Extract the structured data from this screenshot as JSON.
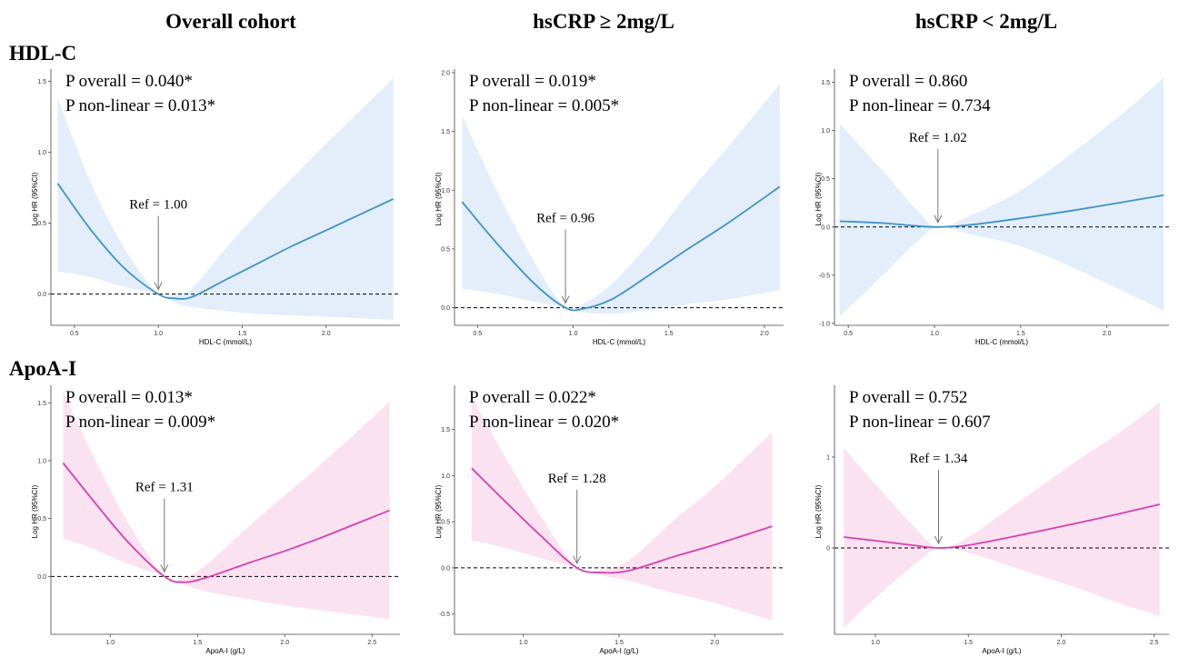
{
  "column_titles": [
    "Overall cohort",
    "hsCRP ≥ 2mg/L",
    "hsCRP < 2mg/L"
  ],
  "row_titles": [
    "HDL-C",
    "ApoA-I"
  ],
  "colors": {
    "hdl_line": "#3e93c7",
    "hdl_band": "#e3eefa",
    "apoa_line": "#d63fb0",
    "apoa_band": "#fbe2f1"
  },
  "chart_data": [
    {
      "type": "line",
      "panel": "HDL-C / Overall cohort",
      "xlabel": "HDL-C (mmol/L)",
      "ylabel": "Log HR (95%CI)",
      "xlim": [
        0.36,
        2.44
      ],
      "ylim": [
        -0.22,
        1.56
      ],
      "xticks": [
        0.5,
        1.0,
        1.5,
        2.0
      ],
      "xtick_labels": [
        "0.5",
        "1.0",
        "1.5",
        "2.0"
      ],
      "yticks": [
        0,
        0.5,
        1.0,
        1.5
      ],
      "ytick_labels": [
        "0.0",
        "0.5",
        "1.0",
        "1.5"
      ],
      "p_overall": "P overall = 0.040*",
      "p_nonlinear": "P non-linear = 0.013*",
      "ref_label": "Ref = 1.00",
      "ref_x": 1.0,
      "x": [
        0.4,
        0.6,
        0.8,
        1.0,
        1.1,
        1.2,
        1.4,
        1.6,
        1.8,
        2.0,
        2.2,
        2.4
      ],
      "y": [
        0.78,
        0.45,
        0.18,
        0.0,
        -0.03,
        -0.02,
        0.1,
        0.22,
        0.34,
        0.45,
        0.56,
        0.67
      ],
      "lower": [
        0.16,
        0.12,
        0.05,
        0.0,
        -0.06,
        -0.09,
        -0.12,
        -0.14,
        -0.15,
        -0.16,
        -0.17,
        -0.18
      ],
      "upper": [
        1.38,
        0.78,
        0.32,
        0.0,
        0.01,
        0.04,
        0.32,
        0.58,
        0.82,
        1.06,
        1.29,
        1.52
      ]
    },
    {
      "type": "line",
      "panel": "HDL-C / hsCRP ≥ 2mg/L",
      "xlabel": "HDL-C (mmol/L)",
      "ylabel": "Log HR (95%CI)",
      "xlim": [
        0.38,
        2.1
      ],
      "ylim": [
        -0.15,
        2.0
      ],
      "xticks": [
        0.5,
        1.0,
        1.5,
        2.0
      ],
      "xtick_labels": [
        "0.5",
        "1.0",
        "1.5",
        "2.0"
      ],
      "yticks": [
        0,
        0.5,
        1.0,
        1.5,
        2.0
      ],
      "ytick_labels": [
        "0.0",
        "0.5",
        "1.0",
        "1.5",
        "2.0"
      ],
      "p_overall": "P overall = 0.019*",
      "p_nonlinear": "P non-linear = 0.005*",
      "ref_label": "Ref = 0.96",
      "ref_x": 0.96,
      "x": [
        0.42,
        0.6,
        0.8,
        0.96,
        1.05,
        1.2,
        1.4,
        1.6,
        1.8,
        2.08
      ],
      "y": [
        0.9,
        0.55,
        0.2,
        0.0,
        -0.01,
        0.07,
        0.28,
        0.5,
        0.71,
        1.03
      ],
      "lower": [
        0.16,
        0.12,
        0.05,
        0.0,
        -0.04,
        -0.05,
        -0.02,
        0.03,
        0.07,
        0.15
      ],
      "upper": [
        1.63,
        1.0,
        0.38,
        0.0,
        0.03,
        0.2,
        0.55,
        0.97,
        1.35,
        1.9
      ]
    },
    {
      "type": "line",
      "panel": "HDL-C / hsCRP < 2mg/L",
      "xlabel": "HDL-C (mmol/L)",
      "ylabel": "Log HR (95%CI)",
      "xlim": [
        0.42,
        2.36
      ],
      "ylim": [
        -1.02,
        1.6
      ],
      "xticks": [
        0.5,
        1.0,
        1.5,
        2.0
      ],
      "xtick_labels": [
        "0.5",
        "1.0",
        "1.5",
        "2.0"
      ],
      "yticks": [
        -1.0,
        -0.5,
        0,
        0.5,
        1.0,
        1.5
      ],
      "ytick_labels": [
        "-1.0",
        "-0.5",
        "0.0",
        "0.5",
        "1.0",
        "1.5"
      ],
      "p_overall": "P overall = 0.860",
      "p_nonlinear": "P non-linear = 0.734",
      "ref_label": "Ref = 1.02",
      "ref_x": 1.02,
      "x": [
        0.45,
        0.7,
        0.9,
        1.02,
        1.2,
        1.5,
        1.8,
        2.1,
        2.33
      ],
      "y": [
        0.06,
        0.04,
        0.01,
        0.0,
        0.02,
        0.09,
        0.17,
        0.26,
        0.33
      ],
      "lower": [
        -0.93,
        -0.5,
        -0.15,
        0.0,
        -0.07,
        -0.2,
        -0.42,
        -0.67,
        -0.87
      ],
      "upper": [
        1.07,
        0.58,
        0.17,
        0.0,
        0.11,
        0.38,
        0.77,
        1.19,
        1.55
      ]
    },
    {
      "type": "line",
      "panel": "ApoA-I / Overall cohort",
      "xlabel": "ApoA-I (g/L)",
      "ylabel": "Log HR (95%CI)",
      "xlim": [
        0.66,
        2.66
      ],
      "ylim": [
        -0.5,
        1.62
      ],
      "xticks": [
        1.0,
        1.5,
        2.0,
        2.5
      ],
      "xtick_labels": [
        "1.0",
        "1.5",
        "2.0",
        "2.5"
      ],
      "yticks": [
        0,
        0.5,
        1.0,
        1.5
      ],
      "ytick_labels": [
        "0.0",
        "0.5",
        "1.0",
        "1.5"
      ],
      "p_overall": "P overall = 0.013*",
      "p_nonlinear": "P non-linear = 0.009*",
      "ref_label": "Ref = 1.31",
      "ref_x": 1.31,
      "x": [
        0.73,
        0.9,
        1.1,
        1.31,
        1.42,
        1.55,
        1.8,
        2.0,
        2.2,
        2.4,
        2.6
      ],
      "y": [
        0.98,
        0.66,
        0.3,
        0.0,
        -0.05,
        -0.01,
        0.12,
        0.22,
        0.33,
        0.45,
        0.57
      ],
      "lower": [
        0.33,
        0.24,
        0.11,
        0.0,
        -0.07,
        -0.13,
        -0.2,
        -0.25,
        -0.29,
        -0.33,
        -0.37
      ],
      "upper": [
        1.6,
        1.05,
        0.47,
        0.0,
        -0.01,
        0.1,
        0.44,
        0.7,
        0.96,
        1.23,
        1.51
      ]
    },
    {
      "type": "line",
      "panel": "ApoA-I / hsCRP ≥ 2mg/L",
      "xlabel": "ApoA-I (g/L)",
      "ylabel": "Log HR (95%CI)",
      "xlim": [
        0.64,
        2.36
      ],
      "ylim": [
        -0.72,
        1.94
      ],
      "xticks": [
        1.0,
        1.5,
        2.0
      ],
      "xtick_labels": [
        "1.0",
        "1.5",
        "2.0"
      ],
      "yticks": [
        -0.5,
        0,
        0.5,
        1.0,
        1.5
      ],
      "ytick_labels": [
        "-0.5",
        "0.0",
        "0.5",
        "1.0",
        "1.5"
      ],
      "p_overall": "P overall = 0.022*",
      "p_nonlinear": "P non-linear = 0.020*",
      "ref_label": "Ref = 1.28",
      "ref_x": 1.28,
      "x": [
        0.73,
        0.9,
        1.1,
        1.28,
        1.4,
        1.55,
        1.8,
        2.0,
        2.3
      ],
      "y": [
        1.08,
        0.73,
        0.33,
        0.0,
        -0.05,
        -0.03,
        0.13,
        0.25,
        0.45
      ],
      "lower": [
        0.3,
        0.22,
        0.1,
        0.0,
        -0.08,
        -0.14,
        -0.28,
        -0.38,
        -0.57
      ],
      "upper": [
        1.85,
        1.22,
        0.53,
        0.0,
        -0.02,
        0.08,
        0.54,
        0.88,
        1.47
      ]
    },
    {
      "type": "line",
      "panel": "ApoA-I / hsCRP < 2mg/L",
      "xlabel": "ApoA-I (g/L)",
      "ylabel": "Log HR (95%CI)",
      "xlim": [
        0.78,
        2.58
      ],
      "ylim": [
        -0.95,
        1.75
      ],
      "xticks": [
        1.0,
        1.5,
        2.0,
        2.5
      ],
      "xtick_labels": [
        "1.0",
        "1.5",
        "2.0",
        "2.5"
      ],
      "yticks": [
        0,
        1
      ],
      "ytick_labels": [
        "0",
        "1"
      ],
      "p_overall": "P overall = 0.752",
      "p_nonlinear": "P non-linear = 0.607",
      "ref_label": "Ref = 1.34",
      "ref_x": 1.34,
      "x": [
        0.83,
        1.0,
        1.2,
        1.34,
        1.5,
        1.8,
        2.1,
        2.3,
        2.53
      ],
      "y": [
        0.12,
        0.08,
        0.03,
        0.0,
        0.03,
        0.15,
        0.28,
        0.37,
        0.48
      ],
      "lower": [
        -0.88,
        -0.55,
        -0.2,
        0.0,
        -0.05,
        -0.25,
        -0.45,
        -0.6,
        -0.75
      ],
      "upper": [
        1.1,
        0.7,
        0.25,
        0.0,
        0.12,
        0.55,
        0.98,
        1.25,
        1.6
      ]
    }
  ]
}
